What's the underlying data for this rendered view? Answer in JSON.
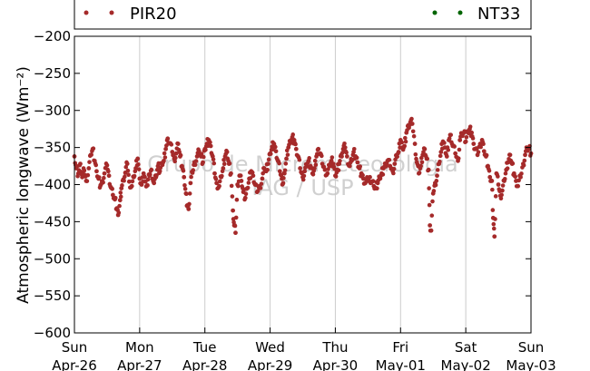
{
  "chart_data": {
    "type": "scatter",
    "ylabel": "Atmospheric longwave (Wm⁻²)",
    "ylim": [
      -600,
      -200
    ],
    "yticks": [
      -600,
      -550,
      -500,
      -450,
      -400,
      -350,
      -300,
      -250,
      -200
    ],
    "xlim": [
      0,
      7
    ],
    "xticks": [
      {
        "x": 0,
        "day": "Sun",
        "date": "Apr-26"
      },
      {
        "x": 1,
        "day": "Mon",
        "date": "Apr-27"
      },
      {
        "x": 2,
        "day": "Tue",
        "date": "Apr-28"
      },
      {
        "x": 3,
        "day": "Wed",
        "date": "Apr-29"
      },
      {
        "x": 4,
        "day": "Thu",
        "date": "Apr-30"
      },
      {
        "x": 5,
        "day": "Fri",
        "date": "May-01"
      },
      {
        "x": 6,
        "day": "Sat",
        "date": "May-02"
      },
      {
        "x": 7,
        "day": "Sun",
        "date": "May-03"
      }
    ],
    "grid": "vertical",
    "legend": "top",
    "series": [
      {
        "name": "PIR20",
        "color": "#a52a2a",
        "points": [
          [
            0.0,
            -362
          ],
          [
            0.03,
            -378
          ],
          [
            0.06,
            -385
          ],
          [
            0.09,
            -372
          ],
          [
            0.12,
            -390
          ],
          [
            0.15,
            -381
          ],
          [
            0.18,
            -395
          ],
          [
            0.22,
            -378
          ],
          [
            0.25,
            -360
          ],
          [
            0.28,
            -352
          ],
          [
            0.31,
            -368
          ],
          [
            0.34,
            -382
          ],
          [
            0.37,
            -392
          ],
          [
            0.4,
            -401
          ],
          [
            0.43,
            -396
          ],
          [
            0.46,
            -385
          ],
          [
            0.5,
            -374
          ],
          [
            0.53,
            -388
          ],
          [
            0.56,
            -404
          ],
          [
            0.59,
            -414
          ],
          [
            0.62,
            -420
          ],
          [
            0.65,
            -432
          ],
          [
            0.67,
            -441
          ],
          [
            0.7,
            -421
          ],
          [
            0.72,
            -405
          ],
          [
            0.75,
            -393
          ],
          [
            0.78,
            -384
          ],
          [
            0.81,
            -372
          ],
          [
            0.84,
            -396
          ],
          [
            0.88,
            -402
          ],
          [
            0.91,
            -390
          ],
          [
            0.94,
            -378
          ],
          [
            0.97,
            -365
          ],
          [
            1.0,
            -392
          ],
          [
            1.03,
            -400
          ],
          [
            1.06,
            -385
          ],
          [
            1.09,
            -396
          ],
          [
            1.12,
            -401
          ],
          [
            1.15,
            -388
          ],
          [
            1.18,
            -380
          ],
          [
            1.22,
            -398
          ],
          [
            1.25,
            -390
          ],
          [
            1.28,
            -375
          ],
          [
            1.31,
            -382
          ],
          [
            1.34,
            -371
          ],
          [
            1.37,
            -368
          ],
          [
            1.4,
            -352
          ],
          [
            1.43,
            -338
          ],
          [
            1.46,
            -344
          ],
          [
            1.5,
            -356
          ],
          [
            1.53,
            -365
          ],
          [
            1.56,
            -358
          ],
          [
            1.59,
            -345
          ],
          [
            1.62,
            -362
          ],
          [
            1.65,
            -375
          ],
          [
            1.68,
            -390
          ],
          [
            1.71,
            -412
          ],
          [
            1.73,
            -428
          ],
          [
            1.75,
            -433
          ],
          [
            1.78,
            -398
          ],
          [
            1.81,
            -384
          ],
          [
            1.84,
            -370
          ],
          [
            1.88,
            -362
          ],
          [
            1.91,
            -355
          ],
          [
            1.94,
            -362
          ],
          [
            1.97,
            -370
          ],
          [
            2.0,
            -352
          ],
          [
            2.03,
            -345
          ],
          [
            2.06,
            -340
          ],
          [
            2.09,
            -348
          ],
          [
            2.12,
            -362
          ],
          [
            2.15,
            -385
          ],
          [
            2.18,
            -398
          ],
          [
            2.22,
            -402
          ],
          [
            2.25,
            -390
          ],
          [
            2.28,
            -378
          ],
          [
            2.31,
            -362
          ],
          [
            2.34,
            -356
          ],
          [
            2.37,
            -372
          ],
          [
            2.4,
            -385
          ],
          [
            2.43,
            -435
          ],
          [
            2.45,
            -455
          ],
          [
            2.47,
            -465
          ],
          [
            2.5,
            -400
          ],
          [
            2.53,
            -388
          ],
          [
            2.56,
            -395
          ],
          [
            2.59,
            -410
          ],
          [
            2.62,
            -418
          ],
          [
            2.65,
            -405
          ],
          [
            2.68,
            -392
          ],
          [
            2.71,
            -382
          ],
          [
            2.74,
            -388
          ],
          [
            2.77,
            -400
          ],
          [
            2.8,
            -410
          ],
          [
            2.84,
            -402
          ],
          [
            2.88,
            -392
          ],
          [
            2.91,
            -378
          ],
          [
            2.94,
            -382
          ],
          [
            2.97,
            -372
          ],
          [
            3.0,
            -358
          ],
          [
            3.03,
            -349
          ],
          [
            3.06,
            -345
          ],
          [
            3.09,
            -355
          ],
          [
            3.12,
            -368
          ],
          [
            3.15,
            -382
          ],
          [
            3.18,
            -392
          ],
          [
            3.2,
            -398
          ],
          [
            3.22,
            -385
          ],
          [
            3.25,
            -365
          ],
          [
            3.28,
            -350
          ],
          [
            3.31,
            -342
          ],
          [
            3.34,
            -336
          ],
          [
            3.37,
            -340
          ],
          [
            3.4,
            -352
          ],
          [
            3.43,
            -362
          ],
          [
            3.46,
            -378
          ],
          [
            3.5,
            -390
          ],
          [
            3.53,
            -382
          ],
          [
            3.56,
            -375
          ],
          [
            3.59,
            -368
          ],
          [
            3.62,
            -375
          ],
          [
            3.65,
            -385
          ],
          [
            3.68,
            -378
          ],
          [
            3.71,
            -362
          ],
          [
            3.74,
            -352
          ],
          [
            3.77,
            -358
          ],
          [
            3.8,
            -372
          ],
          [
            3.84,
            -380
          ],
          [
            3.88,
            -385
          ],
          [
            3.91,
            -375
          ],
          [
            3.94,
            -368
          ],
          [
            3.97,
            -372
          ],
          [
            4.0,
            -388
          ],
          [
            4.03,
            -380
          ],
          [
            4.06,
            -372
          ],
          [
            4.09,
            -360
          ],
          [
            4.12,
            -352
          ],
          [
            4.15,
            -350
          ],
          [
            4.18,
            -362
          ],
          [
            4.22,
            -375
          ],
          [
            4.25,
            -368
          ],
          [
            4.28,
            -356
          ],
          [
            4.31,
            -362
          ],
          [
            4.34,
            -370
          ],
          [
            4.37,
            -378
          ],
          [
            4.4,
            -385
          ],
          [
            4.43,
            -392
          ],
          [
            4.46,
            -398
          ],
          [
            4.5,
            -395
          ],
          [
            4.53,
            -390
          ],
          [
            4.56,
            -396
          ],
          [
            4.59,
            -402
          ],
          [
            4.62,
            -405
          ],
          [
            4.65,
            -398
          ],
          [
            4.68,
            -390
          ],
          [
            4.71,
            -385
          ],
          [
            4.74,
            -378
          ],
          [
            4.77,
            -372
          ],
          [
            4.8,
            -368
          ],
          [
            4.84,
            -375
          ],
          [
            4.88,
            -382
          ],
          [
            4.91,
            -372
          ],
          [
            4.94,
            -362
          ],
          [
            4.97,
            -356
          ],
          [
            5.0,
            -340
          ],
          [
            5.03,
            -350
          ],
          [
            5.06,
            -348
          ],
          [
            5.09,
            -330
          ],
          [
            5.12,
            -320
          ],
          [
            5.15,
            -316
          ],
          [
            5.18,
            -318
          ],
          [
            5.22,
            -345
          ],
          [
            5.25,
            -370
          ],
          [
            5.28,
            -385
          ],
          [
            5.31,
            -375
          ],
          [
            5.34,
            -360
          ],
          [
            5.37,
            -352
          ],
          [
            5.4,
            -365
          ],
          [
            5.43,
            -380
          ],
          [
            5.45,
            -455
          ],
          [
            5.47,
            -462
          ],
          [
            5.5,
            -412
          ],
          [
            5.53,
            -398
          ],
          [
            5.56,
            -388
          ],
          [
            5.59,
            -372
          ],
          [
            5.62,
            -356
          ],
          [
            5.65,
            -342
          ],
          [
            5.68,
            -350
          ],
          [
            5.71,
            -362
          ],
          [
            5.74,
            -340
          ],
          [
            5.77,
            -333
          ],
          [
            5.8,
            -348
          ],
          [
            5.84,
            -358
          ],
          [
            5.88,
            -368
          ],
          [
            5.91,
            -340
          ],
          [
            5.94,
            -333
          ],
          [
            5.97,
            -330
          ],
          [
            6.0,
            -342
          ],
          [
            6.03,
            -328
          ],
          [
            6.06,
            -325
          ],
          [
            6.09,
            -330
          ],
          [
            6.12,
            -345
          ],
          [
            6.15,
            -352
          ],
          [
            6.18,
            -360
          ],
          [
            6.22,
            -345
          ],
          [
            6.25,
            -340
          ],
          [
            6.28,
            -355
          ],
          [
            6.31,
            -362
          ],
          [
            6.34,
            -375
          ],
          [
            6.37,
            -390
          ],
          [
            6.4,
            -395
          ],
          [
            6.42,
            -445
          ],
          [
            6.44,
            -470
          ],
          [
            6.47,
            -385
          ],
          [
            6.5,
            -400
          ],
          [
            6.53,
            -415
          ],
          [
            6.56,
            -408
          ],
          [
            6.59,
            -395
          ],
          [
            6.62,
            -380
          ],
          [
            6.65,
            -370
          ],
          [
            6.68,
            -360
          ],
          [
            6.71,
            -372
          ],
          [
            6.74,
            -385
          ],
          [
            6.77,
            -395
          ],
          [
            6.8,
            -402
          ],
          [
            6.84,
            -390
          ],
          [
            6.88,
            -372
          ],
          [
            6.91,
            -360
          ],
          [
            6.94,
            -352
          ],
          [
            6.97,
            -352
          ],
          [
            7.0,
            -358
          ]
        ]
      },
      {
        "name": "NT33",
        "color": "#006400",
        "points": []
      }
    ]
  },
  "watermark": {
    "line1": "Grupo de Micrometeorologia",
    "line2": "IAG / USP"
  }
}
